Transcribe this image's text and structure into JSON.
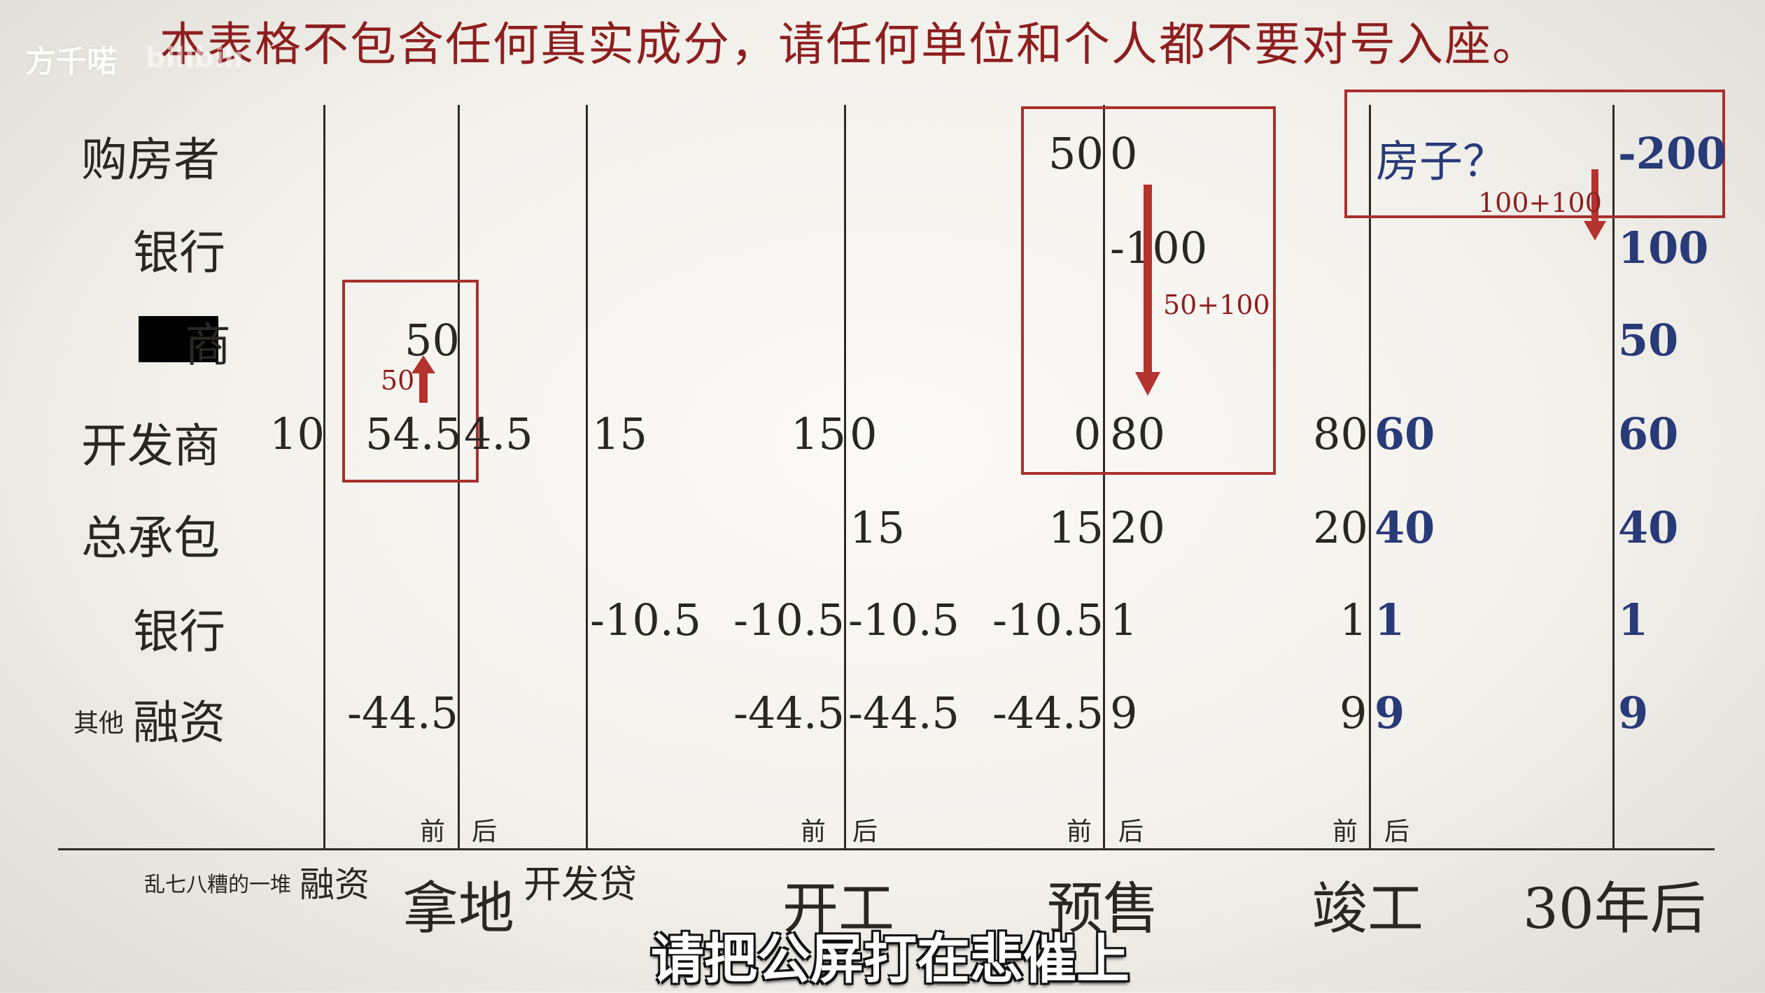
{
  "disclaimer": "本表格不包含任何真实成分，请任何单位和个人都不要对号入座。",
  "watermark": "方千喏",
  "watermark_brand": "bilibili",
  "rows": [
    "购房者",
    "银行",
    "商",
    "开发商",
    "总承包",
    "银行",
    "其他",
    "融资"
  ],
  "cells": {
    "buyer": {
      "presale_before": "50",
      "presale_after": "0",
      "house": "房子？",
      "year30": "-200"
    },
    "bank1": {
      "presale_after": "-100",
      "year30": "100"
    },
    "merchant": {
      "land": "50",
      "year30": "50"
    },
    "developer": {
      "init": "10",
      "land_before": "54.5",
      "land_after": "4.5",
      "loan": "15",
      "start_before": "15",
      "start_after": "0",
      "presale_before": "0",
      "presale_after": "80",
      "complete_before": "80",
      "complete_after": "60",
      "year30": "60"
    },
    "contractor": {
      "start_after": "15",
      "presale_before": "15",
      "presale_after": "20",
      "complete_before": "20",
      "complete_after": "40",
      "year30": "40"
    },
    "bank2": {
      "loan": "-10.5",
      "start_before": "-10.5",
      "start_after": "-10.5",
      "presale_before": "-10.5",
      "presale_after": "1",
      "complete_before": "1",
      "complete_after": "1",
      "year30": "1"
    },
    "other": {
      "land": "-44.5",
      "start_before": "-44.5",
      "start_after": "-44.5",
      "presale_before": "-44.5",
      "presale_after": "9",
      "complete_before": "9",
      "complete_after": "9",
      "year30": "9"
    }
  },
  "annotations": {
    "land_arrow": "50",
    "presale_arrow": "50+100",
    "year30_arrow": "100+100"
  },
  "before_after": {
    "before": "前",
    "after": "后"
  },
  "stages": {
    "misc_small": "乱七八糟的一堆",
    "misc_big": "融资",
    "land": "拿地",
    "loan": "开发贷",
    "start": "开工",
    "presale": "预售",
    "complete": "竣工",
    "year30": "30年后"
  },
  "subtitle": "请把公屏打在悲催上",
  "colors": {
    "accent_red": "#a8302c",
    "text_red": "#8e1f1f",
    "value_blue": "#283a78"
  }
}
